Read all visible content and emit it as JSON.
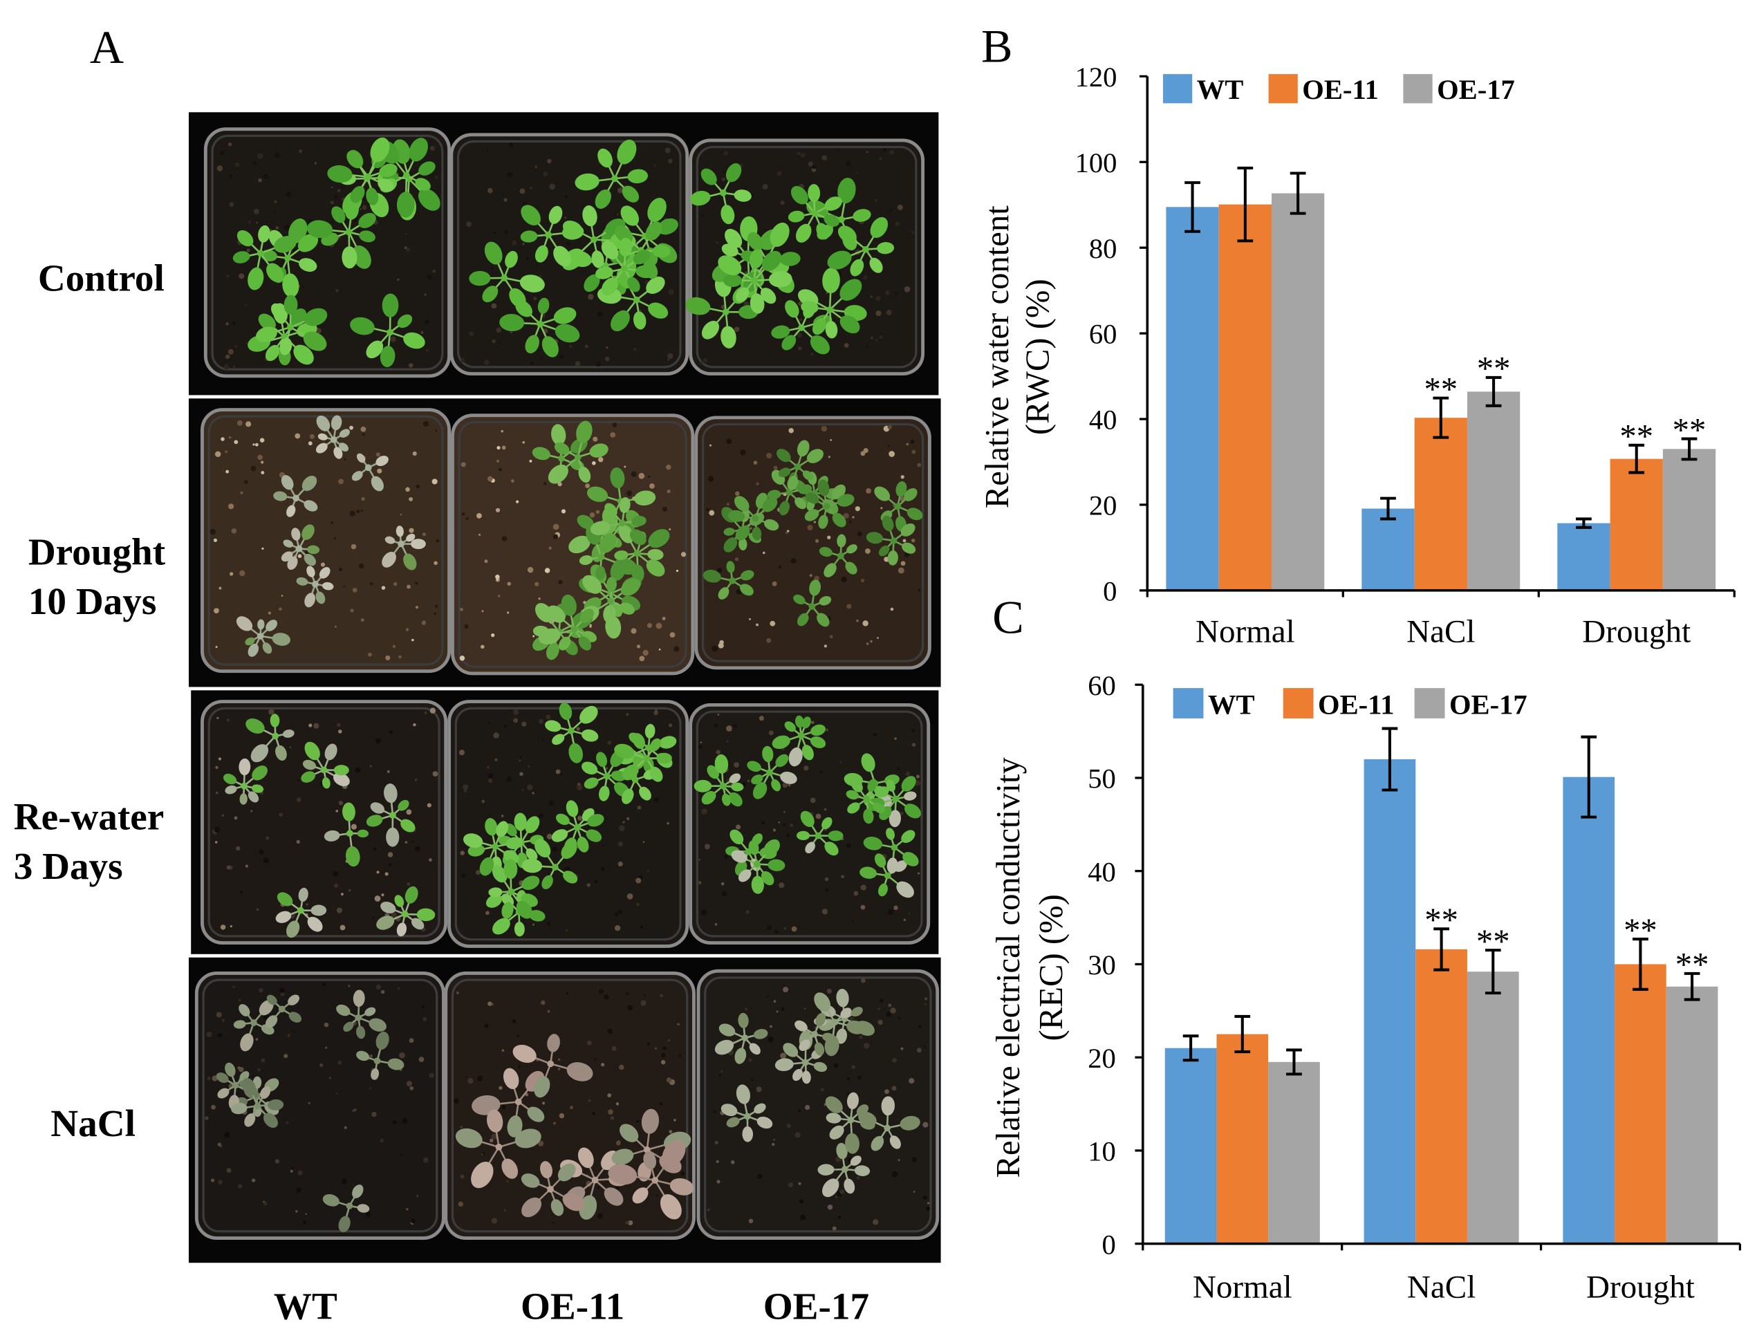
{
  "panel_a": {
    "label": "A",
    "rows": [
      {
        "label_lines": [
          "Control"
        ]
      },
      {
        "label_lines": [
          "Drought",
          "10 Days"
        ]
      },
      {
        "label_lines": [
          "Re-water",
          "3 Days"
        ]
      },
      {
        "label_lines": [
          "NaCl"
        ]
      }
    ],
    "columns": [
      "WT",
      "OE-11",
      "OE-17"
    ]
  },
  "chart_data": [
    {
      "panel_label": "B",
      "type": "bar",
      "ylabel_lines": [
        "Relative water content",
        "(RWC) (%)"
      ],
      "categories": [
        "Normal",
        "NaCl",
        "Drought"
      ],
      "ylim": [
        0,
        120
      ],
      "yticks": [
        0,
        20,
        40,
        60,
        80,
        100,
        120
      ],
      "legend_position": "top-left",
      "series": [
        {
          "name": "WT",
          "color": "#5b9bd5",
          "values": [
            89.5,
            19.1,
            15.7
          ],
          "errors": [
            5.7,
            2.4,
            1.0
          ]
        },
        {
          "name": "OE-11",
          "color": "#ed7d31",
          "values": [
            90.1,
            40.3,
            30.7
          ],
          "errors": [
            8.5,
            4.6,
            3.2
          ],
          "significance": [
            "",
            "**",
            "**"
          ]
        },
        {
          "name": "OE-17",
          "color": "#a5a5a5",
          "values": [
            92.7,
            46.4,
            33.0
          ],
          "errors": [
            4.7,
            3.3,
            2.4
          ],
          "significance": [
            "",
            "**",
            "**"
          ]
        }
      ]
    },
    {
      "panel_label": "C",
      "type": "bar",
      "ylabel_lines": [
        "Relative electrical conductivity",
        "(REC) (%)"
      ],
      "categories": [
        "Normal",
        "NaCl",
        "Drought"
      ],
      "ylim": [
        0,
        60
      ],
      "yticks": [
        0,
        10,
        20,
        30,
        40,
        50,
        60
      ],
      "legend_position": "top-left",
      "series": [
        {
          "name": "WT",
          "color": "#5b9bd5",
          "values": [
            21.0,
            52.0,
            50.1
          ],
          "errors": [
            1.3,
            3.3,
            4.3
          ]
        },
        {
          "name": "OE-11",
          "color": "#ed7d31",
          "values": [
            22.5,
            31.6,
            30.0
          ],
          "errors": [
            1.9,
            2.2,
            2.7
          ],
          "significance": [
            "",
            "**",
            "**"
          ]
        },
        {
          "name": "OE-17",
          "color": "#a5a5a5",
          "values": [
            19.5,
            29.2,
            27.6
          ],
          "errors": [
            1.3,
            2.3,
            1.4
          ],
          "significance": [
            "",
            "**",
            "**"
          ]
        }
      ]
    }
  ]
}
